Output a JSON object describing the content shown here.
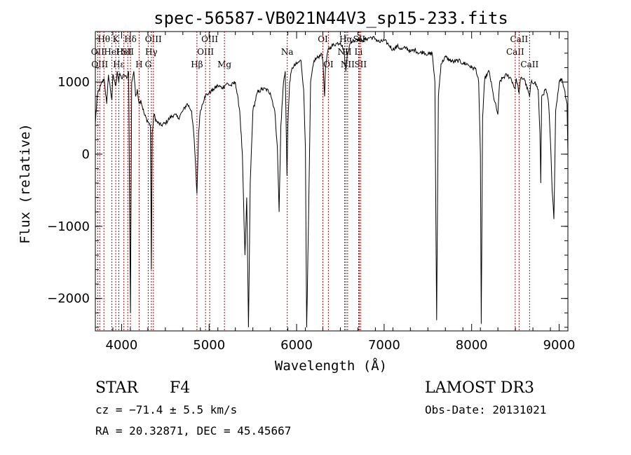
{
  "chart_data": {
    "type": "line",
    "title": "spec-56587-VB021N44V3_sp15-233.fits",
    "xlabel": "Wavelength (Å)",
    "ylabel": "Flux (relative)",
    "xlim": [
      3700,
      9100
    ],
    "ylim": [
      -2450,
      1700
    ],
    "xticks": [
      4000,
      5000,
      6000,
      7000,
      8000,
      9000
    ],
    "xtick_labels": [
      "4000",
      "5000",
      "6000",
      "7000",
      "8000",
      "9000"
    ],
    "yticks": [
      1000,
      0,
      -1000,
      -2000
    ],
    "ytick_labels": [
      "1000",
      "0",
      "−1000",
      "−2000"
    ],
    "series": [
      {
        "name": "spectrum",
        "points": [
          [
            3700,
            420
          ],
          [
            3720,
            800
          ],
          [
            3760,
            950
          ],
          [
            3800,
            1050
          ],
          [
            3830,
            700
          ],
          [
            3850,
            1100
          ],
          [
            3889,
            750
          ],
          [
            3900,
            1100
          ],
          [
            3933,
            950
          ],
          [
            3950,
            1150
          ],
          [
            3968,
            1000
          ],
          [
            3980,
            1120
          ],
          [
            4000,
            1050
          ],
          [
            4030,
            1100
          ],
          [
            4060,
            1050
          ],
          [
            4080,
            1150
          ],
          [
            4101,
            -2200
          ],
          [
            4115,
            1000
          ],
          [
            4140,
            1150
          ],
          [
            4160,
            800
          ],
          [
            4180,
            900
          ],
          [
            4200,
            700
          ],
          [
            4220,
            750
          ],
          [
            4260,
            550
          ],
          [
            4300,
            450
          ],
          [
            4330,
            400
          ],
          [
            4340,
            -1600
          ],
          [
            4350,
            300
          ],
          [
            4370,
            550
          ],
          [
            4400,
            450
          ],
          [
            4450,
            400
          ],
          [
            4500,
            430
          ],
          [
            4550,
            500
          ],
          [
            4600,
            550
          ],
          [
            4650,
            500
          ],
          [
            4700,
            600
          ],
          [
            4750,
            700
          ],
          [
            4800,
            600
          ],
          [
            4830,
            200
          ],
          [
            4861,
            -550
          ],
          [
            4880,
            300
          ],
          [
            4900,
            600
          ],
          [
            4950,
            800
          ],
          [
            5000,
            850
          ],
          [
            5050,
            900
          ],
          [
            5100,
            950
          ],
          [
            5150,
            920
          ],
          [
            5200,
            980
          ],
          [
            5250,
            950
          ],
          [
            5300,
            1000
          ],
          [
            5350,
            600
          ],
          [
            5380,
            0
          ],
          [
            5400,
            -1000
          ],
          [
            5410,
            -1400
          ],
          [
            5430,
            -600
          ],
          [
            5450,
            -2400
          ],
          [
            5470,
            -400
          ],
          [
            5500,
            600
          ],
          [
            5550,
            850
          ],
          [
            5600,
            900
          ],
          [
            5650,
            900
          ],
          [
            5700,
            850
          ],
          [
            5750,
            600
          ],
          [
            5780,
            100
          ],
          [
            5800,
            -800
          ],
          [
            5820,
            400
          ],
          [
            5850,
            1000
          ],
          [
            5870,
            1150
          ],
          [
            5890,
            -300
          ],
          [
            5900,
            400
          ],
          [
            5920,
            1000
          ],
          [
            5950,
            1200
          ],
          [
            6000,
            1250
          ],
          [
            6050,
            1300
          ],
          [
            6080,
            900
          ],
          [
            6100,
            100
          ],
          [
            6115,
            -2400
          ],
          [
            6135,
            -1000
          ],
          [
            6160,
            1000
          ],
          [
            6200,
            1300
          ],
          [
            6250,
            1350
          ],
          [
            6280,
            1400
          ],
          [
            6300,
            1300
          ],
          [
            6320,
            800
          ],
          [
            6330,
            1200
          ],
          [
            6360,
            1450
          ],
          [
            6400,
            1500
          ],
          [
            6450,
            1530
          ],
          [
            6500,
            1550
          ],
          [
            6540,
            1450
          ],
          [
            6563,
            1150
          ],
          [
            6580,
            1400
          ],
          [
            6620,
            1550
          ],
          [
            6650,
            1580
          ],
          [
            6700,
            1600
          ],
          [
            6750,
            1580
          ],
          [
            6800,
            1600
          ],
          [
            6850,
            1620
          ],
          [
            6900,
            1600
          ],
          [
            6950,
            1550
          ],
          [
            7000,
            1580
          ],
          [
            7050,
            1520
          ],
          [
            7100,
            1450
          ],
          [
            7150,
            1500
          ],
          [
            7200,
            1450
          ],
          [
            7250,
            1480
          ],
          [
            7300,
            1420
          ],
          [
            7350,
            1450
          ],
          [
            7400,
            1400
          ],
          [
            7450,
            1420
          ],
          [
            7500,
            1380
          ],
          [
            7550,
            1400
          ],
          [
            7580,
            1000
          ],
          [
            7600,
            -2300
          ],
          [
            7620,
            800
          ],
          [
            7650,
            1250
          ],
          [
            7700,
            1350
          ],
          [
            7750,
            1300
          ],
          [
            7800,
            1280
          ],
          [
            7850,
            1300
          ],
          [
            7900,
            1260
          ],
          [
            7950,
            1250
          ],
          [
            8000,
            1200
          ],
          [
            8050,
            1180
          ],
          [
            8080,
            1000
          ],
          [
            8100,
            0
          ],
          [
            8110,
            -2350
          ],
          [
            8125,
            500
          ],
          [
            8150,
            1050
          ],
          [
            8200,
            1150
          ],
          [
            8250,
            800
          ],
          [
            8300,
            550
          ],
          [
            8320,
            1000
          ],
          [
            8350,
            1050
          ],
          [
            8400,
            1100
          ],
          [
            8450,
            1050
          ],
          [
            8498,
            900
          ],
          [
            8510,
            1050
          ],
          [
            8542,
            850
          ],
          [
            8560,
            1050
          ],
          [
            8600,
            1050
          ],
          [
            8662,
            800
          ],
          [
            8680,
            1000
          ],
          [
            8720,
            1000
          ],
          [
            8760,
            900
          ],
          [
            8780,
            300
          ],
          [
            8790,
            -400
          ],
          [
            8800,
            800
          ],
          [
            8850,
            900
          ],
          [
            8880,
            700
          ],
          [
            8900,
            200
          ],
          [
            8920,
            -500
          ],
          [
            8940,
            -900
          ],
          [
            8960,
            600
          ],
          [
            9000,
            1000
          ],
          [
            9030,
            1050
          ],
          [
            9060,
            900
          ],
          [
            9090,
            700
          ],
          [
            9100,
            0
          ]
        ]
      }
    ],
    "lines": [
      {
        "wavelength": 3727,
        "label": "OII",
        "row": 1
      },
      {
        "wavelength": 3750,
        "label": "OIII",
        "row": 2
      },
      {
        "wavelength": 3798,
        "label": "Hθ",
        "row": 0
      },
      {
        "wavelength": 3889,
        "label": "HeI",
        "row": 1
      },
      {
        "wavelength": 3933,
        "label": "K",
        "row": 0
      },
      {
        "wavelength": 3968,
        "label": "Hε",
        "row": 2
      },
      {
        "wavelength": 4026,
        "label": "HeI",
        "row": 1
      },
      {
        "wavelength": 4070,
        "label": "SII",
        "row": 1
      },
      {
        "wavelength": 4101,
        "label": "Hδ",
        "row": 0
      },
      {
        "wavelength": 4200,
        "label": "H",
        "row": 2
      },
      {
        "wavelength": 4304,
        "label": "G",
        "row": 2
      },
      {
        "wavelength": 4340,
        "label": "Hγ",
        "row": 1
      },
      {
        "wavelength": 4363,
        "label": "OIII",
        "row": 0
      },
      {
        "wavelength": 4861,
        "label": "Hβ",
        "row": 2
      },
      {
        "wavelength": 4959,
        "label": "OIII",
        "row": 1
      },
      {
        "wavelength": 5007,
        "label": "OIII",
        "row": 0
      },
      {
        "wavelength": 5175,
        "label": "Mg",
        "row": 2
      },
      {
        "wavelength": 5893,
        "label": "Na",
        "row": 1
      },
      {
        "wavelength": 6300,
        "label": "OI",
        "row": 0
      },
      {
        "wavelength": 6363,
        "label": "OI",
        "row": 2
      },
      {
        "wavelength": 6548,
        "label": "NII",
        "row": 1
      },
      {
        "wavelength": 6563,
        "label": "Hα",
        "row": 0
      },
      {
        "wavelength": 6583,
        "label": "NII",
        "row": 2
      },
      {
        "wavelength": 6708,
        "label": "Li",
        "row": 1
      },
      {
        "wavelength": 6716,
        "label": "SII",
        "row": 0
      },
      {
        "wavelength": 6731,
        "label": "SII",
        "row": 2
      },
      {
        "wavelength": 8498,
        "label": "CaII",
        "row": 1
      },
      {
        "wavelength": 8542,
        "label": "CaII",
        "row": 0
      },
      {
        "wavelength": 8662,
        "label": "CaII",
        "row": 2
      }
    ]
  },
  "info": {
    "object_class": "STAR",
    "subclass": "F4",
    "survey": "LAMOST DR3",
    "redshift": "cz = −71.4 ± 5.5 km/s",
    "obs_date": "Obs-Date: 20131021",
    "coords": "RA =  20.32871, DEC =  45.45667"
  }
}
